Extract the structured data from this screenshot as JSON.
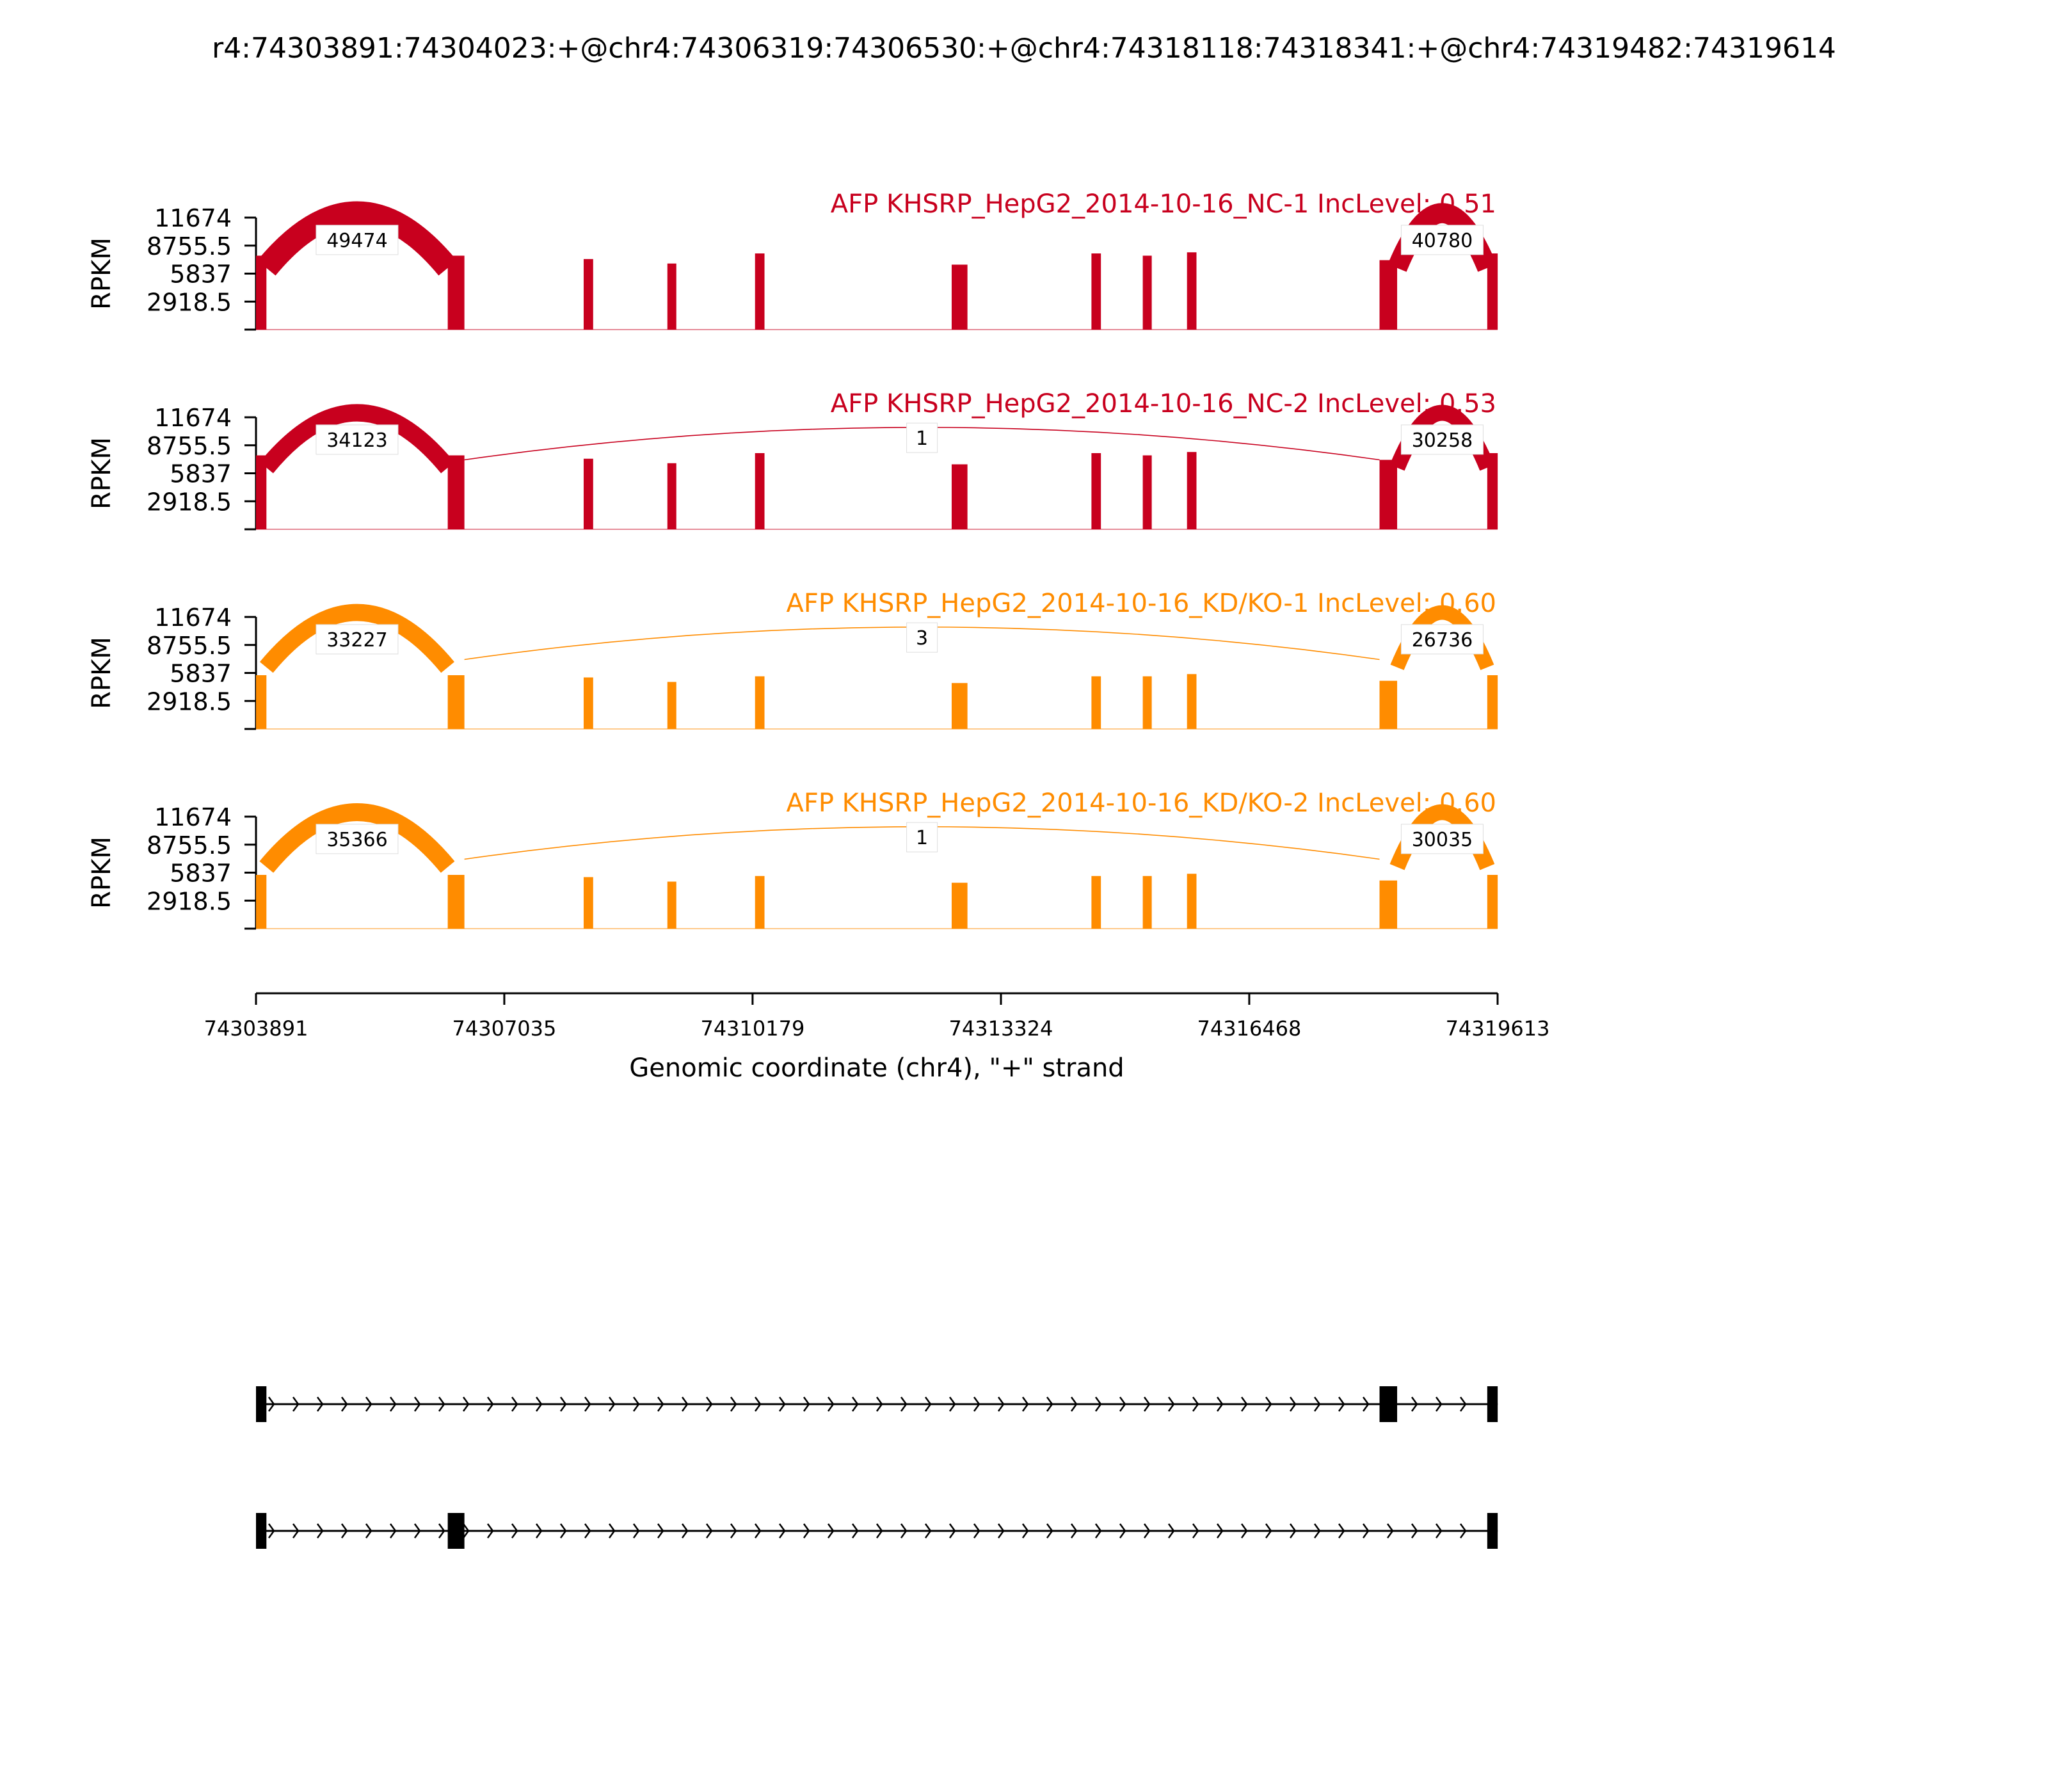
{
  "chart_data": {
    "type": "sashimi",
    "title": "r4:74303891:74304023:+@chr4:74306319:74306530:+@chr4:74318118:74318341:+@chr4:74319482:74319614",
    "xlabel": "Genomic coordinate (chr4), \"+\" strand",
    "ylabel": "RPKM",
    "xlim": [
      74303891,
      74319613
    ],
    "x_ticks": [
      74303891,
      74307035,
      74310179,
      74313324,
      74316468,
      74319613
    ],
    "x_tick_labels": [
      "74303891",
      "74307035",
      "74310179",
      "74313324",
      "74316468",
      "74319613"
    ],
    "ylim": [
      0,
      11674
    ],
    "y_ticks": [
      2918.5,
      5837,
      8755.5,
      11674
    ],
    "y_tick_labels": [
      "2918.5",
      "5837",
      "8755.5",
      "11674"
    ],
    "exon_peaks": [
      {
        "start": 74303891,
        "end": 74304023,
        "nc": 0.66,
        "kd": 0.48
      },
      {
        "start": 74306319,
        "end": 74306530,
        "nc": 0.66,
        "kd": 0.48
      },
      {
        "start": 74308040,
        "end": 74308160,
        "nc": 0.63,
        "kd": 0.46
      },
      {
        "start": 74309100,
        "end": 74309200,
        "nc": 0.59,
        "kd": 0.42
      },
      {
        "start": 74310210,
        "end": 74310330,
        "nc": 0.68,
        "kd": 0.47
      },
      {
        "start": 74312700,
        "end": 74312900,
        "nc": 0.58,
        "kd": 0.41
      },
      {
        "start": 74314470,
        "end": 74314590,
        "nc": 0.68,
        "kd": 0.47
      },
      {
        "start": 74315120,
        "end": 74315220,
        "nc": 0.66,
        "kd": 0.47
      },
      {
        "start": 74315680,
        "end": 74315800,
        "nc": 0.69,
        "kd": 0.49
      },
      {
        "start": 74318118,
        "end": 74318341,
        "nc": 0.62,
        "kd": 0.43
      },
      {
        "start": 74319482,
        "end": 74319614,
        "nc": 0.68,
        "kd": 0.48
      }
    ],
    "series": [
      {
        "name": "AFP KHSRP_HepG2_2014-10-16_NC-1 IncLevel: 0.51",
        "color": "#C8001E",
        "junctions": [
          {
            "start": 74304023,
            "end": 74306319,
            "count": 49474,
            "label": "49474"
          },
          {
            "start": 74318341,
            "end": 74319482,
            "count": 40780,
            "label": "40780"
          }
        ]
      },
      {
        "name": "AFP KHSRP_HepG2_2014-10-16_NC-2 IncLevel: 0.53",
        "color": "#C8001E",
        "junctions": [
          {
            "start": 74304023,
            "end": 74306319,
            "count": 34123,
            "label": "34123"
          },
          {
            "start": 74306530,
            "end": 74318118,
            "count": 1,
            "label": "1"
          },
          {
            "start": 74318341,
            "end": 74319482,
            "count": 30258,
            "label": "30258"
          }
        ]
      },
      {
        "name": "AFP KHSRP_HepG2_2014-10-16_KD/KO-1 IncLevel: 0.60",
        "color": "#FF8C00",
        "junctions": [
          {
            "start": 74304023,
            "end": 74306319,
            "count": 33227,
            "label": "33227"
          },
          {
            "start": 74306530,
            "end": 74318118,
            "count": 3,
            "label": "3"
          },
          {
            "start": 74318341,
            "end": 74319482,
            "count": 26736,
            "label": "26736"
          }
        ]
      },
      {
        "name": "AFP KHSRP_HepG2_2014-10-16_KD/KO-2 IncLevel: 0.60",
        "color": "#FF8C00",
        "junctions": [
          {
            "start": 74304023,
            "end": 74306319,
            "count": 35366,
            "label": "35366"
          },
          {
            "start": 74306530,
            "end": 74318118,
            "count": 1,
            "label": "1"
          },
          {
            "start": 74318341,
            "end": 74319482,
            "count": 30035,
            "label": "30035"
          }
        ]
      }
    ],
    "isoforms": [
      {
        "exons": [
          [
            74303891,
            74304023
          ],
          [
            74318118,
            74318341
          ],
          [
            74319482,
            74319614
          ]
        ]
      },
      {
        "exons": [
          [
            74303891,
            74304023
          ],
          [
            74306319,
            74306530
          ],
          [
            74319482,
            74319614
          ]
        ]
      }
    ]
  }
}
